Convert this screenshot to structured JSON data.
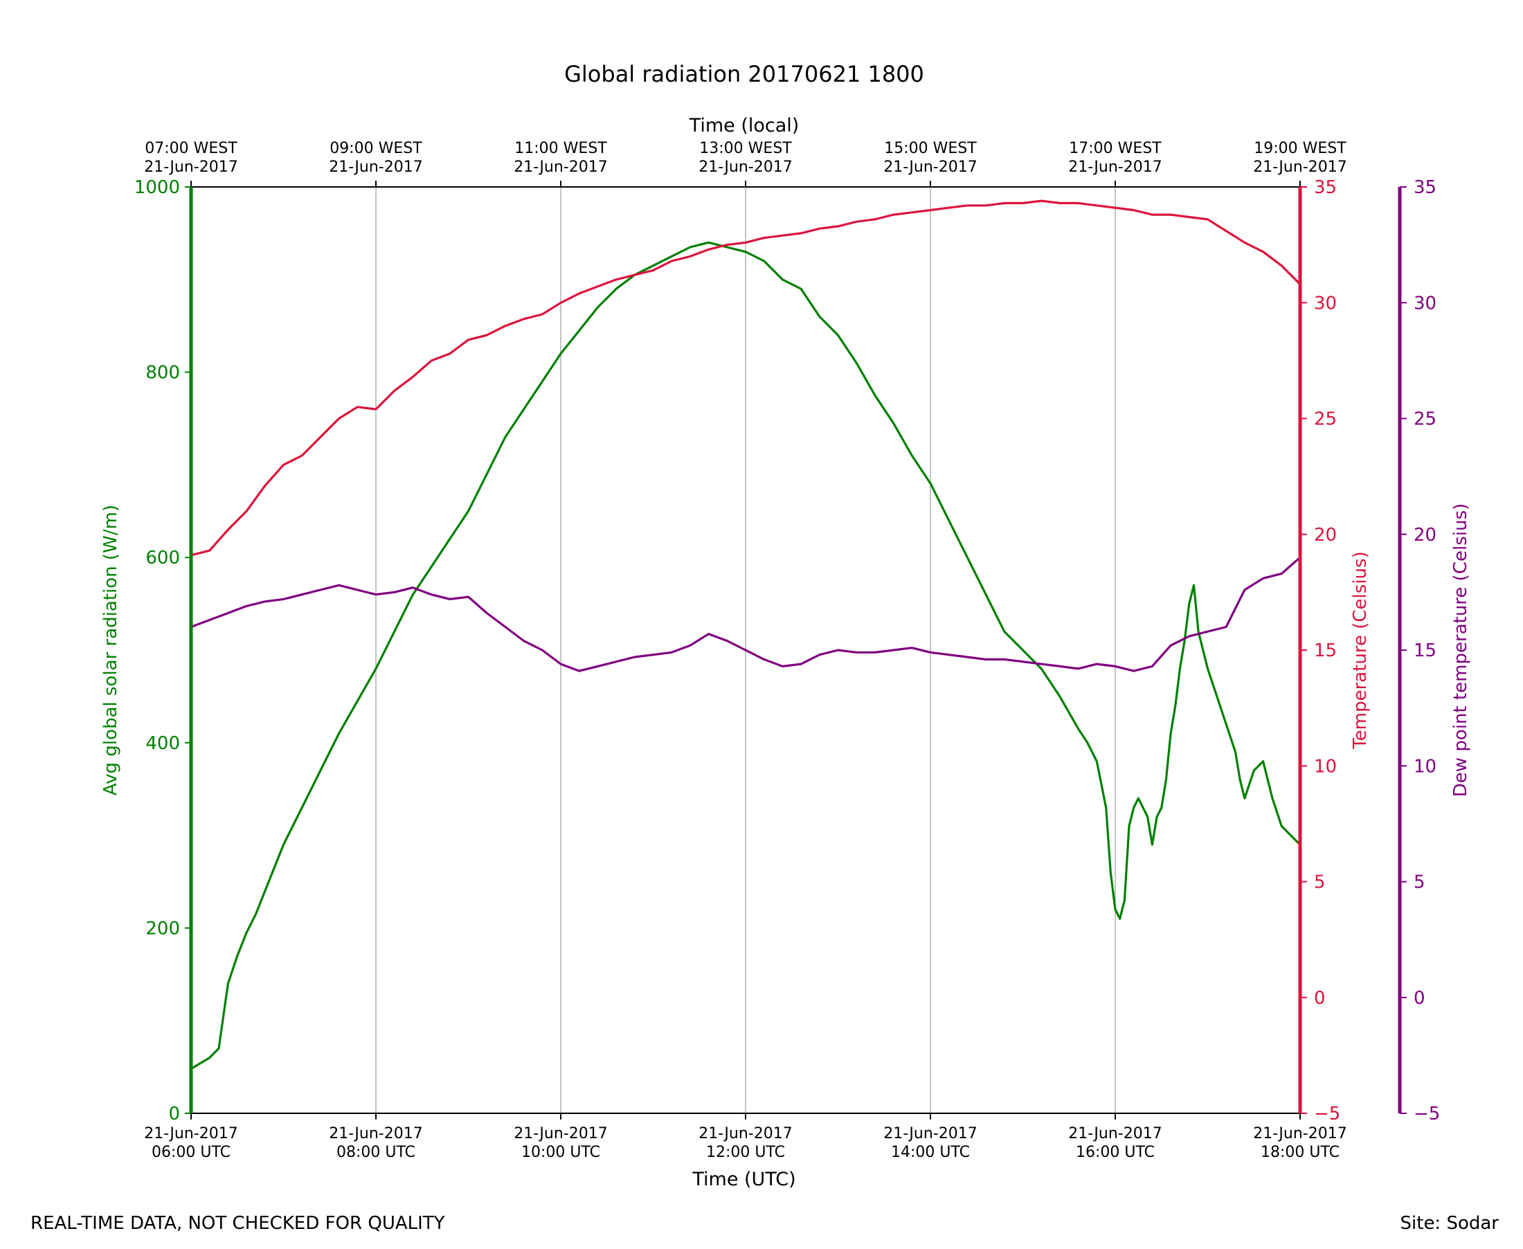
{
  "title": "Global radiation 20170621 1800",
  "footer_left": "REAL-TIME DATA, NOT CHECKED FOR QUALITY",
  "footer_right": "Site: Sodar",
  "colors": {
    "radiation": "#008000",
    "temperature": "#DC143C",
    "dewpoint": "#800080",
    "grid": "#b0b0b0",
    "axis": "#000000"
  },
  "chart_data": {
    "type": "line",
    "title": "Global radiation 20170621 1800",
    "grid": true,
    "xlabel": "Time (UTC)",
    "x2label": "Time (local)",
    "x_range_utc_hours": [
      6,
      18
    ],
    "x_ticks": [
      {
        "hour": 6,
        "line1": "21-Jun-2017",
        "line2": "06:00 UTC"
      },
      {
        "hour": 8,
        "line1": "21-Jun-2017",
        "line2": "08:00 UTC"
      },
      {
        "hour": 10,
        "line1": "21-Jun-2017",
        "line2": "10:00 UTC"
      },
      {
        "hour": 12,
        "line1": "21-Jun-2017",
        "line2": "12:00 UTC"
      },
      {
        "hour": 14,
        "line1": "21-Jun-2017",
        "line2": "14:00 UTC"
      },
      {
        "hour": 16,
        "line1": "21-Jun-2017",
        "line2": "16:00 UTC"
      },
      {
        "hour": 18,
        "line1": "21-Jun-2017",
        "line2": "18:00 UTC"
      }
    ],
    "x2_ticks": [
      {
        "hour": 6,
        "line1": "07:00 WEST",
        "line2": "21-Jun-2017"
      },
      {
        "hour": 8,
        "line1": "09:00 WEST",
        "line2": "21-Jun-2017"
      },
      {
        "hour": 10,
        "line1": "11:00 WEST",
        "line2": "21-Jun-2017"
      },
      {
        "hour": 12,
        "line1": "13:00 WEST",
        "line2": "21-Jun-2017"
      },
      {
        "hour": 14,
        "line1": "15:00 WEST",
        "line2": "21-Jun-2017"
      },
      {
        "hour": 16,
        "line1": "17:00 WEST",
        "line2": "21-Jun-2017"
      },
      {
        "hour": 18,
        "line1": "19:00 WEST",
        "line2": "21-Jun-2017"
      }
    ],
    "y_left": {
      "label": "Avg global solar radiation (W/m)",
      "range": [
        0,
        1000
      ],
      "ticks": [
        "0",
        "200",
        "400",
        "600",
        "800",
        "1000"
      ]
    },
    "y_right1": {
      "label": "Temperature (Celsius)",
      "range": [
        -5,
        35
      ],
      "ticks": [
        "−5",
        "0",
        "5",
        "10",
        "15",
        "20",
        "25",
        "30",
        "35"
      ]
    },
    "y_right2": {
      "label": "Dew point temperature (Celsius)",
      "range": [
        -5,
        35
      ],
      "ticks": [
        "−5",
        "0",
        "5",
        "10",
        "15",
        "20",
        "25",
        "30",
        "35"
      ]
    },
    "series": [
      {
        "key": "radiation",
        "axis": "left",
        "x": [
          6.0,
          6.2,
          6.3,
          6.4,
          6.5,
          6.6,
          6.7,
          6.8,
          7.0,
          7.2,
          7.4,
          7.6,
          7.8,
          8.0,
          8.2,
          8.4,
          8.6,
          8.8,
          9.0,
          9.2,
          9.4,
          9.6,
          9.8,
          10.0,
          10.2,
          10.4,
          10.6,
          10.8,
          11.0,
          11.2,
          11.4,
          11.6,
          11.8,
          12.0,
          12.2,
          12.4,
          12.6,
          12.8,
          13.0,
          13.2,
          13.4,
          13.6,
          13.8,
          14.0,
          14.2,
          14.4,
          14.6,
          14.8,
          15.0,
          15.2,
          15.4,
          15.6,
          15.7,
          15.8,
          15.9,
          15.95,
          16.0,
          16.05,
          16.1,
          16.15,
          16.2,
          16.25,
          16.3,
          16.35,
          16.4,
          16.45,
          16.5,
          16.55,
          16.6,
          16.65,
          16.7,
          16.75,
          16.8,
          16.85,
          16.9,
          17.0,
          17.1,
          17.2,
          17.3,
          17.35,
          17.4,
          17.5,
          17.6,
          17.65,
          17.7,
          17.8,
          17.9,
          18.0
        ],
        "values": [
          48,
          60,
          70,
          140,
          170,
          195,
          215,
          240,
          290,
          330,
          370,
          410,
          445,
          480,
          520,
          560,
          590,
          620,
          650,
          690,
          730,
          760,
          790,
          820,
          845,
          870,
          890,
          905,
          915,
          925,
          935,
          940,
          935,
          930,
          920,
          900,
          890,
          860,
          840,
          810,
          775,
          745,
          710,
          680,
          640,
          600,
          560,
          520,
          500,
          480,
          450,
          415,
          400,
          380,
          330,
          260,
          220,
          210,
          230,
          310,
          330,
          340,
          330,
          320,
          290,
          320,
          330,
          360,
          410,
          440,
          480,
          510,
          550,
          570,
          520,
          480,
          450,
          420,
          390,
          360,
          340,
          370,
          380,
          360,
          340,
          310,
          300,
          290
        ]
      },
      {
        "key": "temperature",
        "axis": "right1",
        "x": [
          6.0,
          6.2,
          6.4,
          6.6,
          6.8,
          7.0,
          7.2,
          7.4,
          7.6,
          7.8,
          8.0,
          8.2,
          8.4,
          8.6,
          8.8,
          9.0,
          9.2,
          9.4,
          9.6,
          9.8,
          10.0,
          10.2,
          10.4,
          10.6,
          10.8,
          11.0,
          11.2,
          11.4,
          11.6,
          11.8,
          12.0,
          12.2,
          12.4,
          12.6,
          12.8,
          13.0,
          13.2,
          13.4,
          13.6,
          13.8,
          14.0,
          14.2,
          14.4,
          14.6,
          14.8,
          15.0,
          15.2,
          15.4,
          15.6,
          15.8,
          16.0,
          16.2,
          16.4,
          16.6,
          16.8,
          17.0,
          17.2,
          17.4,
          17.6,
          17.8,
          18.0
        ],
        "values": [
          19.1,
          19.3,
          20.2,
          21.0,
          22.1,
          23.0,
          23.4,
          24.2,
          25.0,
          25.5,
          25.4,
          26.2,
          26.8,
          27.5,
          27.8,
          28.4,
          28.6,
          29.0,
          29.3,
          29.5,
          30.0,
          30.4,
          30.7,
          31.0,
          31.2,
          31.4,
          31.8,
          32.0,
          32.3,
          32.5,
          32.6,
          32.8,
          32.9,
          33.0,
          33.2,
          33.3,
          33.5,
          33.6,
          33.8,
          33.9,
          34.0,
          34.1,
          34.2,
          34.2,
          34.3,
          34.3,
          34.4,
          34.3,
          34.3,
          34.2,
          34.1,
          34.0,
          33.8,
          33.8,
          33.7,
          33.6,
          33.1,
          32.6,
          32.2,
          31.6,
          30.8
        ]
      },
      {
        "key": "dewpoint",
        "axis": "right2",
        "x": [
          6.0,
          6.2,
          6.4,
          6.6,
          6.8,
          7.0,
          7.2,
          7.4,
          7.6,
          7.8,
          8.0,
          8.2,
          8.4,
          8.6,
          8.8,
          9.0,
          9.2,
          9.4,
          9.6,
          9.8,
          10.0,
          10.2,
          10.4,
          10.6,
          10.8,
          11.0,
          11.2,
          11.4,
          11.6,
          11.8,
          12.0,
          12.2,
          12.4,
          12.6,
          12.8,
          13.0,
          13.2,
          13.4,
          13.6,
          13.8,
          14.0,
          14.2,
          14.4,
          14.6,
          14.8,
          15.0,
          15.2,
          15.4,
          15.6,
          15.8,
          16.0,
          16.2,
          16.4,
          16.6,
          16.8,
          17.0,
          17.2,
          17.4,
          17.6,
          17.8,
          18.0
        ],
        "values": [
          16.0,
          16.3,
          16.6,
          16.9,
          17.1,
          17.2,
          17.4,
          17.6,
          17.8,
          17.6,
          17.4,
          17.5,
          17.7,
          17.4,
          17.2,
          17.3,
          16.6,
          16.0,
          15.4,
          15.0,
          14.4,
          14.1,
          14.3,
          14.5,
          14.7,
          14.8,
          14.9,
          15.2,
          15.7,
          15.4,
          15.0,
          14.6,
          14.3,
          14.4,
          14.8,
          15.0,
          14.9,
          14.9,
          15.0,
          15.1,
          14.9,
          14.8,
          14.7,
          14.6,
          14.6,
          14.5,
          14.4,
          14.3,
          14.2,
          14.4,
          14.3,
          14.1,
          14.3,
          15.2,
          15.6,
          15.8,
          16.0,
          17.6,
          18.1,
          18.3,
          19.0
        ]
      }
    ]
  }
}
